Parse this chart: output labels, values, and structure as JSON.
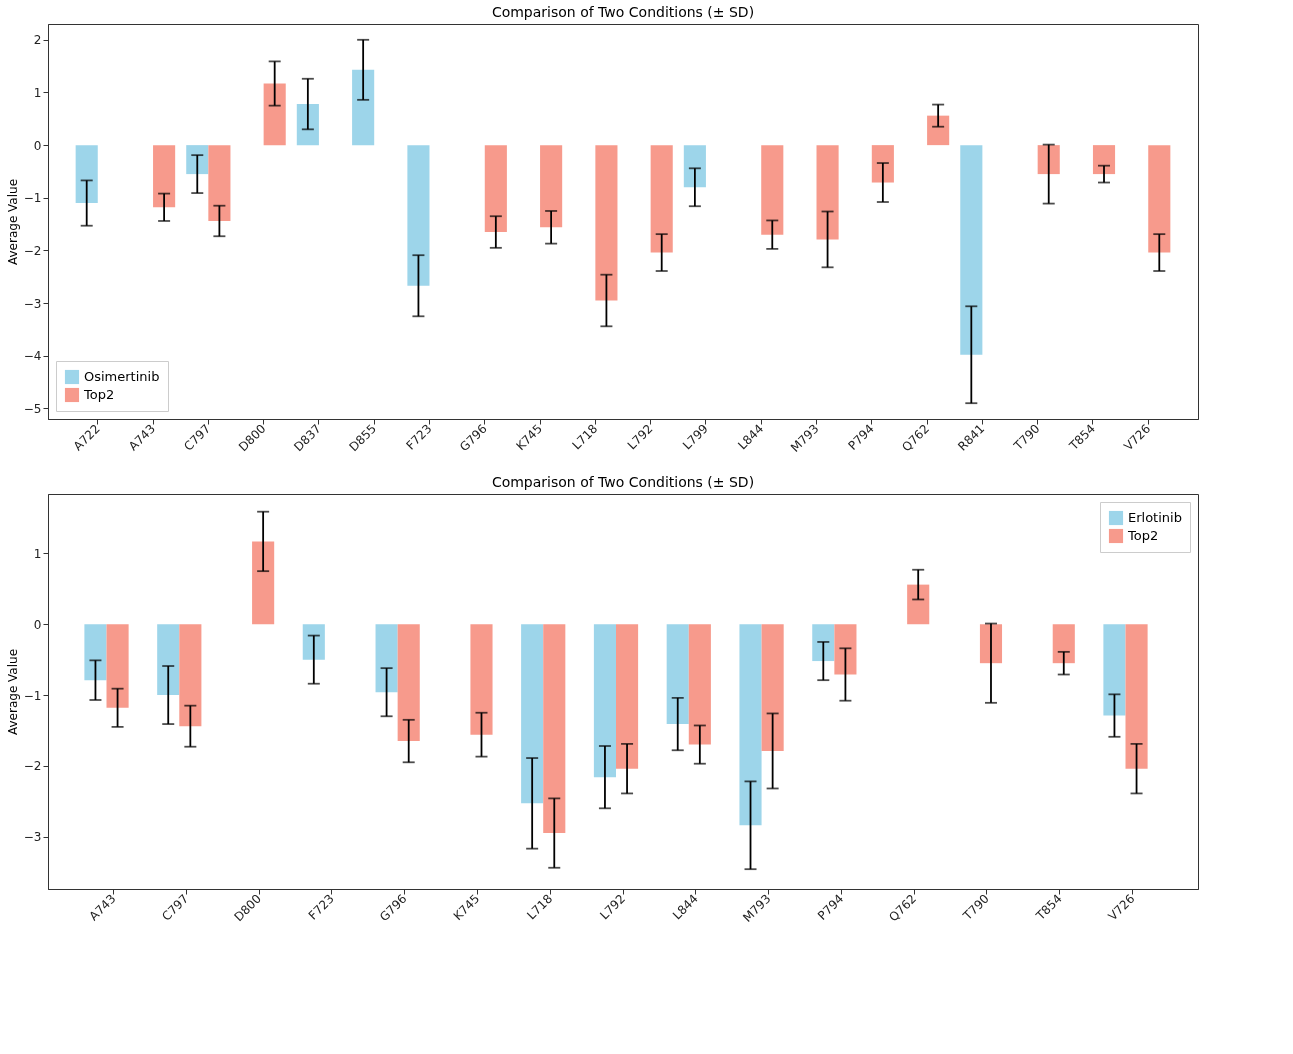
{
  "chart_data": [
    {
      "type": "bar",
      "title": "Comparison of Two Conditions (± SD)",
      "ylabel": "Average Value",
      "categories": [
        "A722",
        "A743",
        "C797",
        "D800",
        "D837",
        "D855",
        "F723",
        "G796",
        "K745",
        "L718",
        "L792",
        "L799",
        "L844",
        "M793",
        "P794",
        "Q762",
        "R841",
        "T790",
        "T854",
        "V726"
      ],
      "series": [
        {
          "name": "Osimertinib",
          "color": "#9dd5ea",
          "values": [
            -1.1,
            null,
            -0.55,
            null,
            0.78,
            1.43,
            -2.67,
            null,
            null,
            null,
            null,
            -0.8,
            null,
            null,
            null,
            null,
            -3.98,
            null,
            null,
            null
          ],
          "errors": [
            0.43,
            null,
            0.36,
            null,
            0.48,
            0.57,
            0.58,
            null,
            null,
            null,
            null,
            0.36,
            null,
            null,
            null,
            null,
            0.92,
            null,
            null,
            null
          ]
        },
        {
          "name": "Top2",
          "color": "#f79a8c",
          "values": [
            null,
            -1.18,
            -1.44,
            1.17,
            null,
            null,
            null,
            -1.65,
            -1.56,
            -2.95,
            -2.04,
            null,
            -1.7,
            -1.79,
            -0.71,
            0.56,
            null,
            -0.55,
            -0.55,
            -2.04
          ],
          "errors": [
            null,
            0.26,
            0.29,
            0.42,
            null,
            null,
            null,
            0.3,
            0.31,
            0.49,
            0.35,
            null,
            0.27,
            0.53,
            0.37,
            0.21,
            null,
            0.56,
            0.16,
            0.35
          ]
        }
      ],
      "ylim": [
        -5.2,
        2.3
      ],
      "yticks": [
        -5,
        -4,
        -3,
        -2,
        -1,
        0,
        1,
        2
      ],
      "legend": "bottom left",
      "grid": false
    },
    {
      "type": "bar",
      "title": "Comparison of Two Conditions (± SD)",
      "ylabel": "Average Value",
      "categories": [
        "A743",
        "C797",
        "D800",
        "F723",
        "G796",
        "K745",
        "L718",
        "L792",
        "L844",
        "M793",
        "P794",
        "Q762",
        "T790",
        "T854",
        "V726"
      ],
      "series": [
        {
          "name": "Erlotinib",
          "color": "#9dd5ea",
          "values": [
            -0.79,
            -1.0,
            null,
            -0.5,
            -0.96,
            null,
            -2.53,
            -2.16,
            -1.41,
            -2.84,
            -0.52,
            null,
            null,
            null,
            -1.29
          ],
          "errors": [
            0.28,
            0.41,
            null,
            0.34,
            0.34,
            null,
            0.64,
            0.44,
            0.37,
            0.62,
            0.27,
            null,
            null,
            null,
            0.3
          ]
        },
        {
          "name": "Top2",
          "color": "#f79a8c",
          "values": [
            -1.18,
            -1.44,
            1.17,
            null,
            -1.65,
            -1.56,
            -2.95,
            -2.04,
            -1.7,
            -1.79,
            -0.71,
            0.56,
            -0.55,
            -0.55,
            -2.04
          ],
          "errors": [
            0.27,
            0.29,
            0.42,
            null,
            0.3,
            0.31,
            0.49,
            0.35,
            0.27,
            0.53,
            0.37,
            0.21,
            0.56,
            0.16,
            0.35
          ]
        }
      ],
      "ylim": [
        -3.74,
        1.84
      ],
      "yticks": [
        -3,
        -2,
        -1,
        0,
        1
      ],
      "legend": "top right",
      "grid": false
    }
  ]
}
